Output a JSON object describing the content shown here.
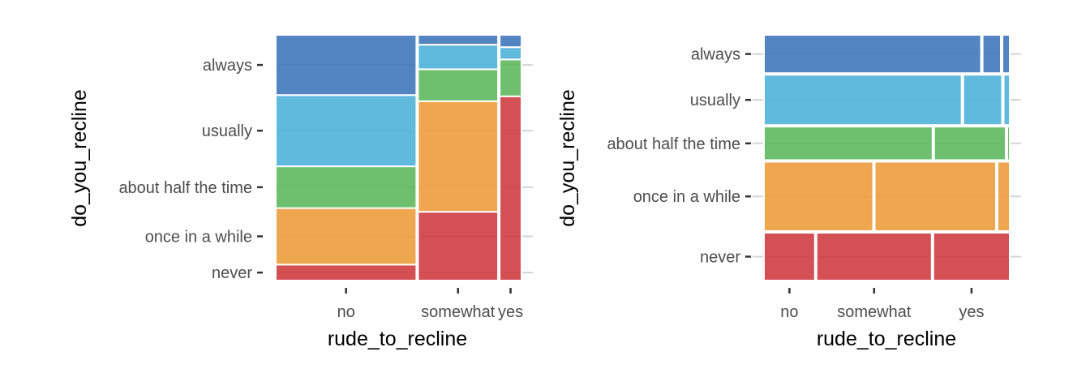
{
  "chart_data": [
    {
      "type": "mosaic",
      "xlabel": "rude_to_recline",
      "ylabel": "do_you_recline",
      "x_categories": [
        "no",
        "somewhat",
        "yes"
      ],
      "x_proportions": [
        0.58,
        0.33,
        0.09
      ],
      "y_categories": [
        "always",
        "usually",
        "about half the time",
        "once in a while",
        "never"
      ],
      "conditional_proportions": {
        "no": [
          0.245,
          0.29,
          0.17,
          0.23,
          0.065
        ],
        "somewhat": [
          0.04,
          0.1,
          0.13,
          0.45,
          0.28
        ],
        "yes": [
          0.05,
          0.05,
          0.15,
          0.0,
          0.75
        ]
      },
      "colors": {
        "always": "#4178bc",
        "usually": "#4fb3da",
        "about half the time": "#5fb95e",
        "once in a while": "#ec9c3c",
        "never": "#cf3d41"
      }
    },
    {
      "type": "mosaic",
      "xlabel": "rude_to_recline",
      "ylabel": "do_you_recline",
      "x_categories": [
        "no",
        "somewhat",
        "yes"
      ],
      "y_categories": [
        "always",
        "usually",
        "about half the time",
        "once in a while",
        "never"
      ],
      "y_proportions": [
        0.16,
        0.21,
        0.14,
        0.29,
        0.2
      ],
      "conditional_proportions": {
        "always": [
          0.895,
          0.075,
          0.03
        ],
        "usually": [
          0.815,
          0.16,
          0.025
        ],
        "about half the time": [
          0.695,
          0.295,
          0.01
        ],
        "once in a while": [
          0.45,
          0.5,
          0.05
        ],
        "never": [
          0.21,
          0.475,
          0.315
        ]
      },
      "colors": {
        "always": "#4178bc",
        "usually": "#4fb3da",
        "about half the time": "#5fb95e",
        "once in a while": "#ec9c3c",
        "never": "#cf3d41"
      }
    }
  ]
}
